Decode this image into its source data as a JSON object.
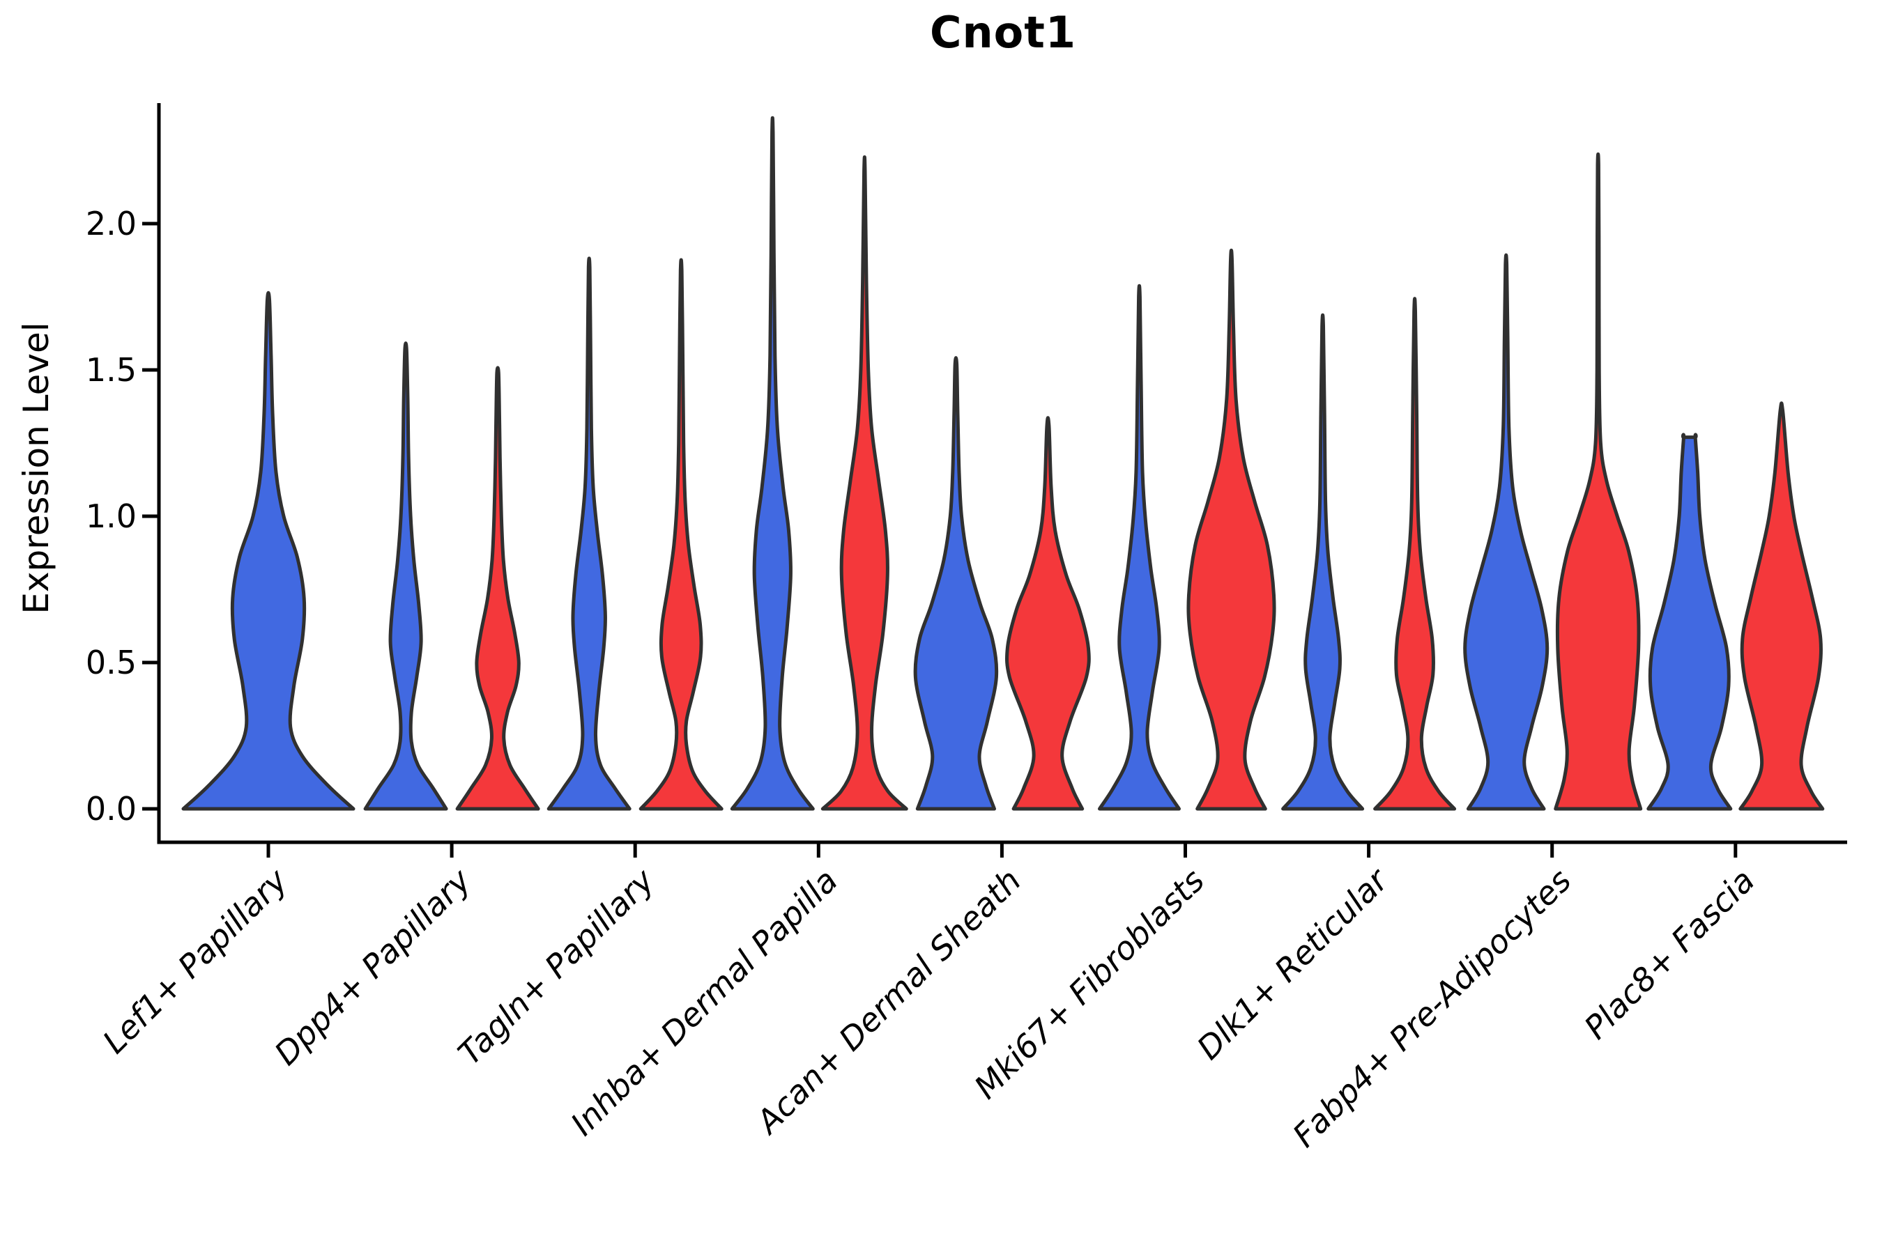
{
  "chart_data": {
    "type": "violin",
    "title": "Cnot1",
    "ylabel": "Expression Level",
    "xlabel": "",
    "grid": false,
    "legend": "none",
    "background_color": "#ffffff",
    "spine_color": "#000000",
    "outline_color": "#303030",
    "ylim": [
      -0.11,
      2.41
    ],
    "yticks": [
      0.0,
      0.5,
      1.0,
      1.5,
      2.0
    ],
    "ytick_labels": [
      "0.0",
      "0.5",
      "1.0",
      "1.5",
      "2.0"
    ],
    "categories": [
      "Lef1+ Papillary",
      "Dpp4+ Papillary",
      "Tagln+ Papillary",
      "Inhba+ Dermal Papilla",
      "Acan+ Dermal Sheath",
      "Mki67+ Fibroblasts",
      "Dlk1+ Reticular",
      "Fabp4+ Pre-Adipocytes",
      "Plac8+ Fascia"
    ],
    "xtick_label_style": "italic, rotated 45 degrees",
    "groups": [
      {
        "name": "blue",
        "color": "#4169E1"
      },
      {
        "name": "red",
        "color": "#F4383B"
      }
    ],
    "violins": [
      {
        "category_index": 0,
        "category": "Lef1+ Papillary",
        "group": "blue",
        "color": "#4169E1",
        "offset": 0,
        "halfwidth": 122,
        "max_expression": 1.74,
        "profile": [
          [
            0,
            1
          ],
          [
            0.08,
            0.7
          ],
          [
            0.18,
            0.4
          ],
          [
            0.28,
            0.26
          ],
          [
            0.42,
            0.3
          ],
          [
            0.58,
            0.4
          ],
          [
            0.72,
            0.42
          ],
          [
            0.86,
            0.34
          ],
          [
            1.0,
            0.18
          ],
          [
            1.15,
            0.09
          ],
          [
            1.35,
            0.05
          ],
          [
            1.55,
            0.032
          ],
          [
            1.74,
            0.012
          ]
        ]
      },
      {
        "category_index": 1,
        "category": "Dpp4+ Papillary",
        "group": "blue",
        "color": "#4169E1",
        "offset": -66,
        "halfwidth": 58,
        "max_expression": 1.57,
        "profile": [
          [
            0,
            1
          ],
          [
            0.07,
            0.68
          ],
          [
            0.15,
            0.3
          ],
          [
            0.23,
            0.14
          ],
          [
            0.33,
            0.14
          ],
          [
            0.45,
            0.27
          ],
          [
            0.57,
            0.38
          ],
          [
            0.7,
            0.32
          ],
          [
            0.85,
            0.2
          ],
          [
            1.0,
            0.12
          ],
          [
            1.2,
            0.07
          ],
          [
            1.4,
            0.05
          ],
          [
            1.57,
            0.02
          ]
        ]
      },
      {
        "category_index": 1,
        "category": "Dpp4+ Papillary",
        "group": "red",
        "color": "#F4383B",
        "offset": 66,
        "halfwidth": 58,
        "max_expression": 1.49,
        "profile": [
          [
            0,
            1
          ],
          [
            0.07,
            0.66
          ],
          [
            0.15,
            0.3
          ],
          [
            0.24,
            0.15
          ],
          [
            0.33,
            0.24
          ],
          [
            0.42,
            0.45
          ],
          [
            0.5,
            0.52
          ],
          [
            0.6,
            0.42
          ],
          [
            0.72,
            0.25
          ],
          [
            0.85,
            0.14
          ],
          [
            1.0,
            0.09
          ],
          [
            1.2,
            0.055
          ],
          [
            1.35,
            0.04
          ],
          [
            1.49,
            0.02
          ]
        ]
      },
      {
        "category_index": 2,
        "category": "Tagln+ Papillary",
        "group": "blue",
        "color": "#4169E1",
        "offset": -66,
        "halfwidth": 58,
        "max_expression": 1.85,
        "profile": [
          [
            0,
            1
          ],
          [
            0.07,
            0.64
          ],
          [
            0.15,
            0.28
          ],
          [
            0.25,
            0.16
          ],
          [
            0.4,
            0.24
          ],
          [
            0.55,
            0.36
          ],
          [
            0.66,
            0.4
          ],
          [
            0.8,
            0.33
          ],
          [
            0.95,
            0.2
          ],
          [
            1.1,
            0.1
          ],
          [
            1.3,
            0.055
          ],
          [
            1.6,
            0.035
          ],
          [
            1.85,
            0.015
          ]
        ]
      },
      {
        "category_index": 2,
        "category": "Tagln+ Papillary",
        "group": "red",
        "color": "#F4383B",
        "offset": 66,
        "halfwidth": 58,
        "max_expression": 1.84,
        "profile": [
          [
            0,
            1
          ],
          [
            0.06,
            0.6
          ],
          [
            0.13,
            0.28
          ],
          [
            0.22,
            0.13
          ],
          [
            0.3,
            0.13
          ],
          [
            0.4,
            0.3
          ],
          [
            0.52,
            0.48
          ],
          [
            0.63,
            0.47
          ],
          [
            0.76,
            0.32
          ],
          [
            0.9,
            0.18
          ],
          [
            1.05,
            0.1
          ],
          [
            1.25,
            0.06
          ],
          [
            1.55,
            0.04
          ],
          [
            1.84,
            0.015
          ]
        ]
      },
      {
        "category_index": 3,
        "category": "Inhba+ Dermal Papilla",
        "group": "blue",
        "color": "#4169E1",
        "offset": -66,
        "halfwidth": 58,
        "max_expression": 2.31,
        "profile": [
          [
            0,
            1
          ],
          [
            0.07,
            0.62
          ],
          [
            0.16,
            0.3
          ],
          [
            0.28,
            0.18
          ],
          [
            0.45,
            0.24
          ],
          [
            0.62,
            0.36
          ],
          [
            0.8,
            0.45
          ],
          [
            0.95,
            0.4
          ],
          [
            1.1,
            0.26
          ],
          [
            1.3,
            0.12
          ],
          [
            1.55,
            0.06
          ],
          [
            1.9,
            0.035
          ],
          [
            2.31,
            0.012
          ]
        ]
      },
      {
        "category_index": 3,
        "category": "Inhba+ Dermal Papilla",
        "group": "red",
        "color": "#F4383B",
        "offset": 66,
        "halfwidth": 60,
        "max_expression": 2.18,
        "profile": [
          [
            0,
            1
          ],
          [
            0.06,
            0.56
          ],
          [
            0.14,
            0.28
          ],
          [
            0.26,
            0.17
          ],
          [
            0.42,
            0.26
          ],
          [
            0.6,
            0.44
          ],
          [
            0.8,
            0.55
          ],
          [
            0.95,
            0.5
          ],
          [
            1.12,
            0.34
          ],
          [
            1.3,
            0.17
          ],
          [
            1.5,
            0.09
          ],
          [
            1.8,
            0.045
          ],
          [
            2.18,
            0.012
          ]
        ]
      },
      {
        "category_index": 4,
        "category": "Acan+ Dermal Sheath",
        "group": "blue",
        "color": "#4169E1",
        "offset": -66,
        "halfwidth": 58,
        "max_expression": 1.52,
        "profile": [
          [
            0,
            0.95
          ],
          [
            0.08,
            0.74
          ],
          [
            0.18,
            0.58
          ],
          [
            0.3,
            0.78
          ],
          [
            0.45,
            1
          ],
          [
            0.58,
            0.9
          ],
          [
            0.7,
            0.6
          ],
          [
            0.85,
            0.3
          ],
          [
            1.0,
            0.14
          ],
          [
            1.15,
            0.08
          ],
          [
            1.35,
            0.045
          ],
          [
            1.52,
            0.02
          ]
        ]
      },
      {
        "category_index": 4,
        "category": "Acan+ Dermal Sheath",
        "group": "red",
        "color": "#F4383B",
        "offset": 66,
        "halfwidth": 58,
        "max_expression": 1.31,
        "profile": [
          [
            0,
            0.85
          ],
          [
            0.07,
            0.6
          ],
          [
            0.18,
            0.35
          ],
          [
            0.3,
            0.55
          ],
          [
            0.45,
            0.95
          ],
          [
            0.55,
            1
          ],
          [
            0.68,
            0.78
          ],
          [
            0.8,
            0.45
          ],
          [
            0.95,
            0.18
          ],
          [
            1.1,
            0.08
          ],
          [
            1.31,
            0.025
          ]
        ]
      },
      {
        "category_index": 5,
        "category": "Mki67+ Fibroblasts",
        "group": "blue",
        "color": "#4169E1",
        "offset": -66,
        "halfwidth": 57,
        "max_expression": 1.75,
        "profile": [
          [
            0,
            1
          ],
          [
            0.07,
            0.66
          ],
          [
            0.16,
            0.32
          ],
          [
            0.26,
            0.2
          ],
          [
            0.4,
            0.33
          ],
          [
            0.55,
            0.5
          ],
          [
            0.68,
            0.44
          ],
          [
            0.82,
            0.29
          ],
          [
            0.98,
            0.16
          ],
          [
            1.15,
            0.08
          ],
          [
            1.45,
            0.045
          ],
          [
            1.75,
            0.015
          ]
        ]
      },
      {
        "category_index": 5,
        "category": "Mki67+ Fibroblasts",
        "group": "red",
        "color": "#F4383B",
        "offset": 66,
        "halfwidth": 61,
        "max_expression": 1.88,
        "profile": [
          [
            0,
            0.8
          ],
          [
            0.07,
            0.55
          ],
          [
            0.17,
            0.32
          ],
          [
            0.3,
            0.45
          ],
          [
            0.45,
            0.78
          ],
          [
            0.6,
            0.97
          ],
          [
            0.73,
            1
          ],
          [
            0.9,
            0.85
          ],
          [
            1.05,
            0.55
          ],
          [
            1.2,
            0.28
          ],
          [
            1.4,
            0.11
          ],
          [
            1.65,
            0.05
          ],
          [
            1.88,
            0.015
          ]
        ]
      },
      {
        "category_index": 6,
        "category": "Dlk1+ Reticular",
        "group": "blue",
        "color": "#4169E1",
        "offset": -66,
        "halfwidth": 57,
        "max_expression": 1.65,
        "profile": [
          [
            0,
            1
          ],
          [
            0.06,
            0.62
          ],
          [
            0.14,
            0.3
          ],
          [
            0.24,
            0.18
          ],
          [
            0.36,
            0.3
          ],
          [
            0.48,
            0.43
          ],
          [
            0.58,
            0.4
          ],
          [
            0.72,
            0.26
          ],
          [
            0.88,
            0.13
          ],
          [
            1.05,
            0.07
          ],
          [
            1.35,
            0.045
          ],
          [
            1.65,
            0.015
          ]
        ]
      },
      {
        "category_index": 6,
        "category": "Dlk1+ Reticular",
        "group": "red",
        "color": "#F4383B",
        "offset": 66,
        "halfwidth": 57,
        "max_expression": 1.7,
        "profile": [
          [
            0,
            1
          ],
          [
            0.06,
            0.6
          ],
          [
            0.14,
            0.28
          ],
          [
            0.24,
            0.17
          ],
          [
            0.35,
            0.3
          ],
          [
            0.46,
            0.46
          ],
          [
            0.58,
            0.44
          ],
          [
            0.72,
            0.28
          ],
          [
            0.88,
            0.14
          ],
          [
            1.05,
            0.075
          ],
          [
            1.35,
            0.05
          ],
          [
            1.7,
            0.015
          ]
        ]
      },
      {
        "category_index": 7,
        "category": "Fabp4+ Pre-Adipocytes",
        "group": "blue",
        "color": "#4169E1",
        "offset": -66,
        "halfwidth": 59,
        "max_expression": 1.86,
        "profile": [
          [
            0,
            0.92
          ],
          [
            0.07,
            0.62
          ],
          [
            0.16,
            0.44
          ],
          [
            0.28,
            0.62
          ],
          [
            0.42,
            0.88
          ],
          [
            0.55,
            1
          ],
          [
            0.68,
            0.87
          ],
          [
            0.82,
            0.6
          ],
          [
            0.95,
            0.35
          ],
          [
            1.1,
            0.16
          ],
          [
            1.3,
            0.07
          ],
          [
            1.6,
            0.04
          ],
          [
            1.86,
            0.015
          ]
        ]
      },
      {
        "category_index": 7,
        "category": "Fabp4+ Pre-Adipocytes",
        "group": "red",
        "color": "#F4383B",
        "offset": 66,
        "halfwidth": 61,
        "max_expression": 2.2,
        "profile": [
          [
            0,
            1
          ],
          [
            0.1,
            0.8
          ],
          [
            0.2,
            0.73
          ],
          [
            0.35,
            0.85
          ],
          [
            0.55,
            0.95
          ],
          [
            0.72,
            0.92
          ],
          [
            0.88,
            0.72
          ],
          [
            1.0,
            0.45
          ],
          [
            1.12,
            0.2
          ],
          [
            1.25,
            0.06
          ],
          [
            1.5,
            0.025
          ],
          [
            1.9,
            0.02
          ],
          [
            2.2,
            0.012
          ]
        ]
      },
      {
        "category_index": 8,
        "category": "Plac8+ Fascia",
        "group": "blue",
        "color": "#4169E1",
        "offset": -66,
        "halfwidth": 59,
        "max_expression": 1.27,
        "flat_top": true,
        "profile": [
          [
            0,
            1
          ],
          [
            0.07,
            0.68
          ],
          [
            0.15,
            0.52
          ],
          [
            0.28,
            0.78
          ],
          [
            0.42,
            0.95
          ],
          [
            0.55,
            0.9
          ],
          [
            0.7,
            0.62
          ],
          [
            0.85,
            0.38
          ],
          [
            1.0,
            0.25
          ],
          [
            1.15,
            0.2
          ],
          [
            1.27,
            0.14
          ]
        ]
      },
      {
        "category_index": 8,
        "category": "Plac8+ Fascia",
        "group": "red",
        "color": "#F4383B",
        "offset": 66,
        "halfwidth": 59,
        "max_expression": 1.36,
        "profile": [
          [
            0,
            1
          ],
          [
            0.06,
            0.72
          ],
          [
            0.15,
            0.48
          ],
          [
            0.28,
            0.62
          ],
          [
            0.45,
            0.9
          ],
          [
            0.58,
            0.95
          ],
          [
            0.72,
            0.75
          ],
          [
            0.88,
            0.48
          ],
          [
            1.0,
            0.3
          ],
          [
            1.15,
            0.16
          ],
          [
            1.36,
            0.03
          ]
        ]
      }
    ]
  }
}
